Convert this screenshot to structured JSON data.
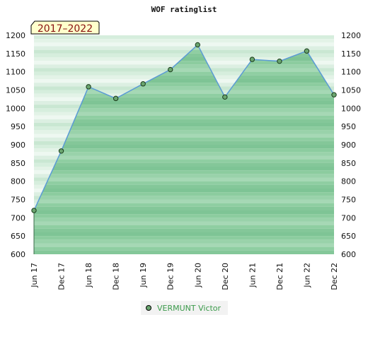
{
  "chart_data": {
    "type": "area",
    "title": "WOF ratinglist",
    "period_label": "2017–2022",
    "categories": [
      "Jun 17",
      "Dec 17",
      "Jun 18",
      "Dec 18",
      "Jun 19",
      "Dec 19",
      "Jun 20",
      "Dec 20",
      "Jun 21",
      "Dec 21",
      "Jun 22",
      "Dec 22"
    ],
    "series": [
      {
        "name": "VERMUNT Victor",
        "values": [
          720,
          883,
          1059,
          1027,
          1067,
          1106,
          1174,
          1031,
          1134,
          1129,
          1157,
          1037
        ]
      }
    ],
    "ylim": [
      600,
      1200
    ],
    "yticks": [
      600,
      650,
      700,
      750,
      800,
      850,
      900,
      950,
      1000,
      1050,
      1100,
      1150,
      1200
    ],
    "legend_position": "bottom",
    "colors": {
      "line": "#5b9bd5",
      "marker_fill": "#6aa56f",
      "marker_stroke": "#1a3a1a",
      "area": "#7ec495"
    }
  }
}
